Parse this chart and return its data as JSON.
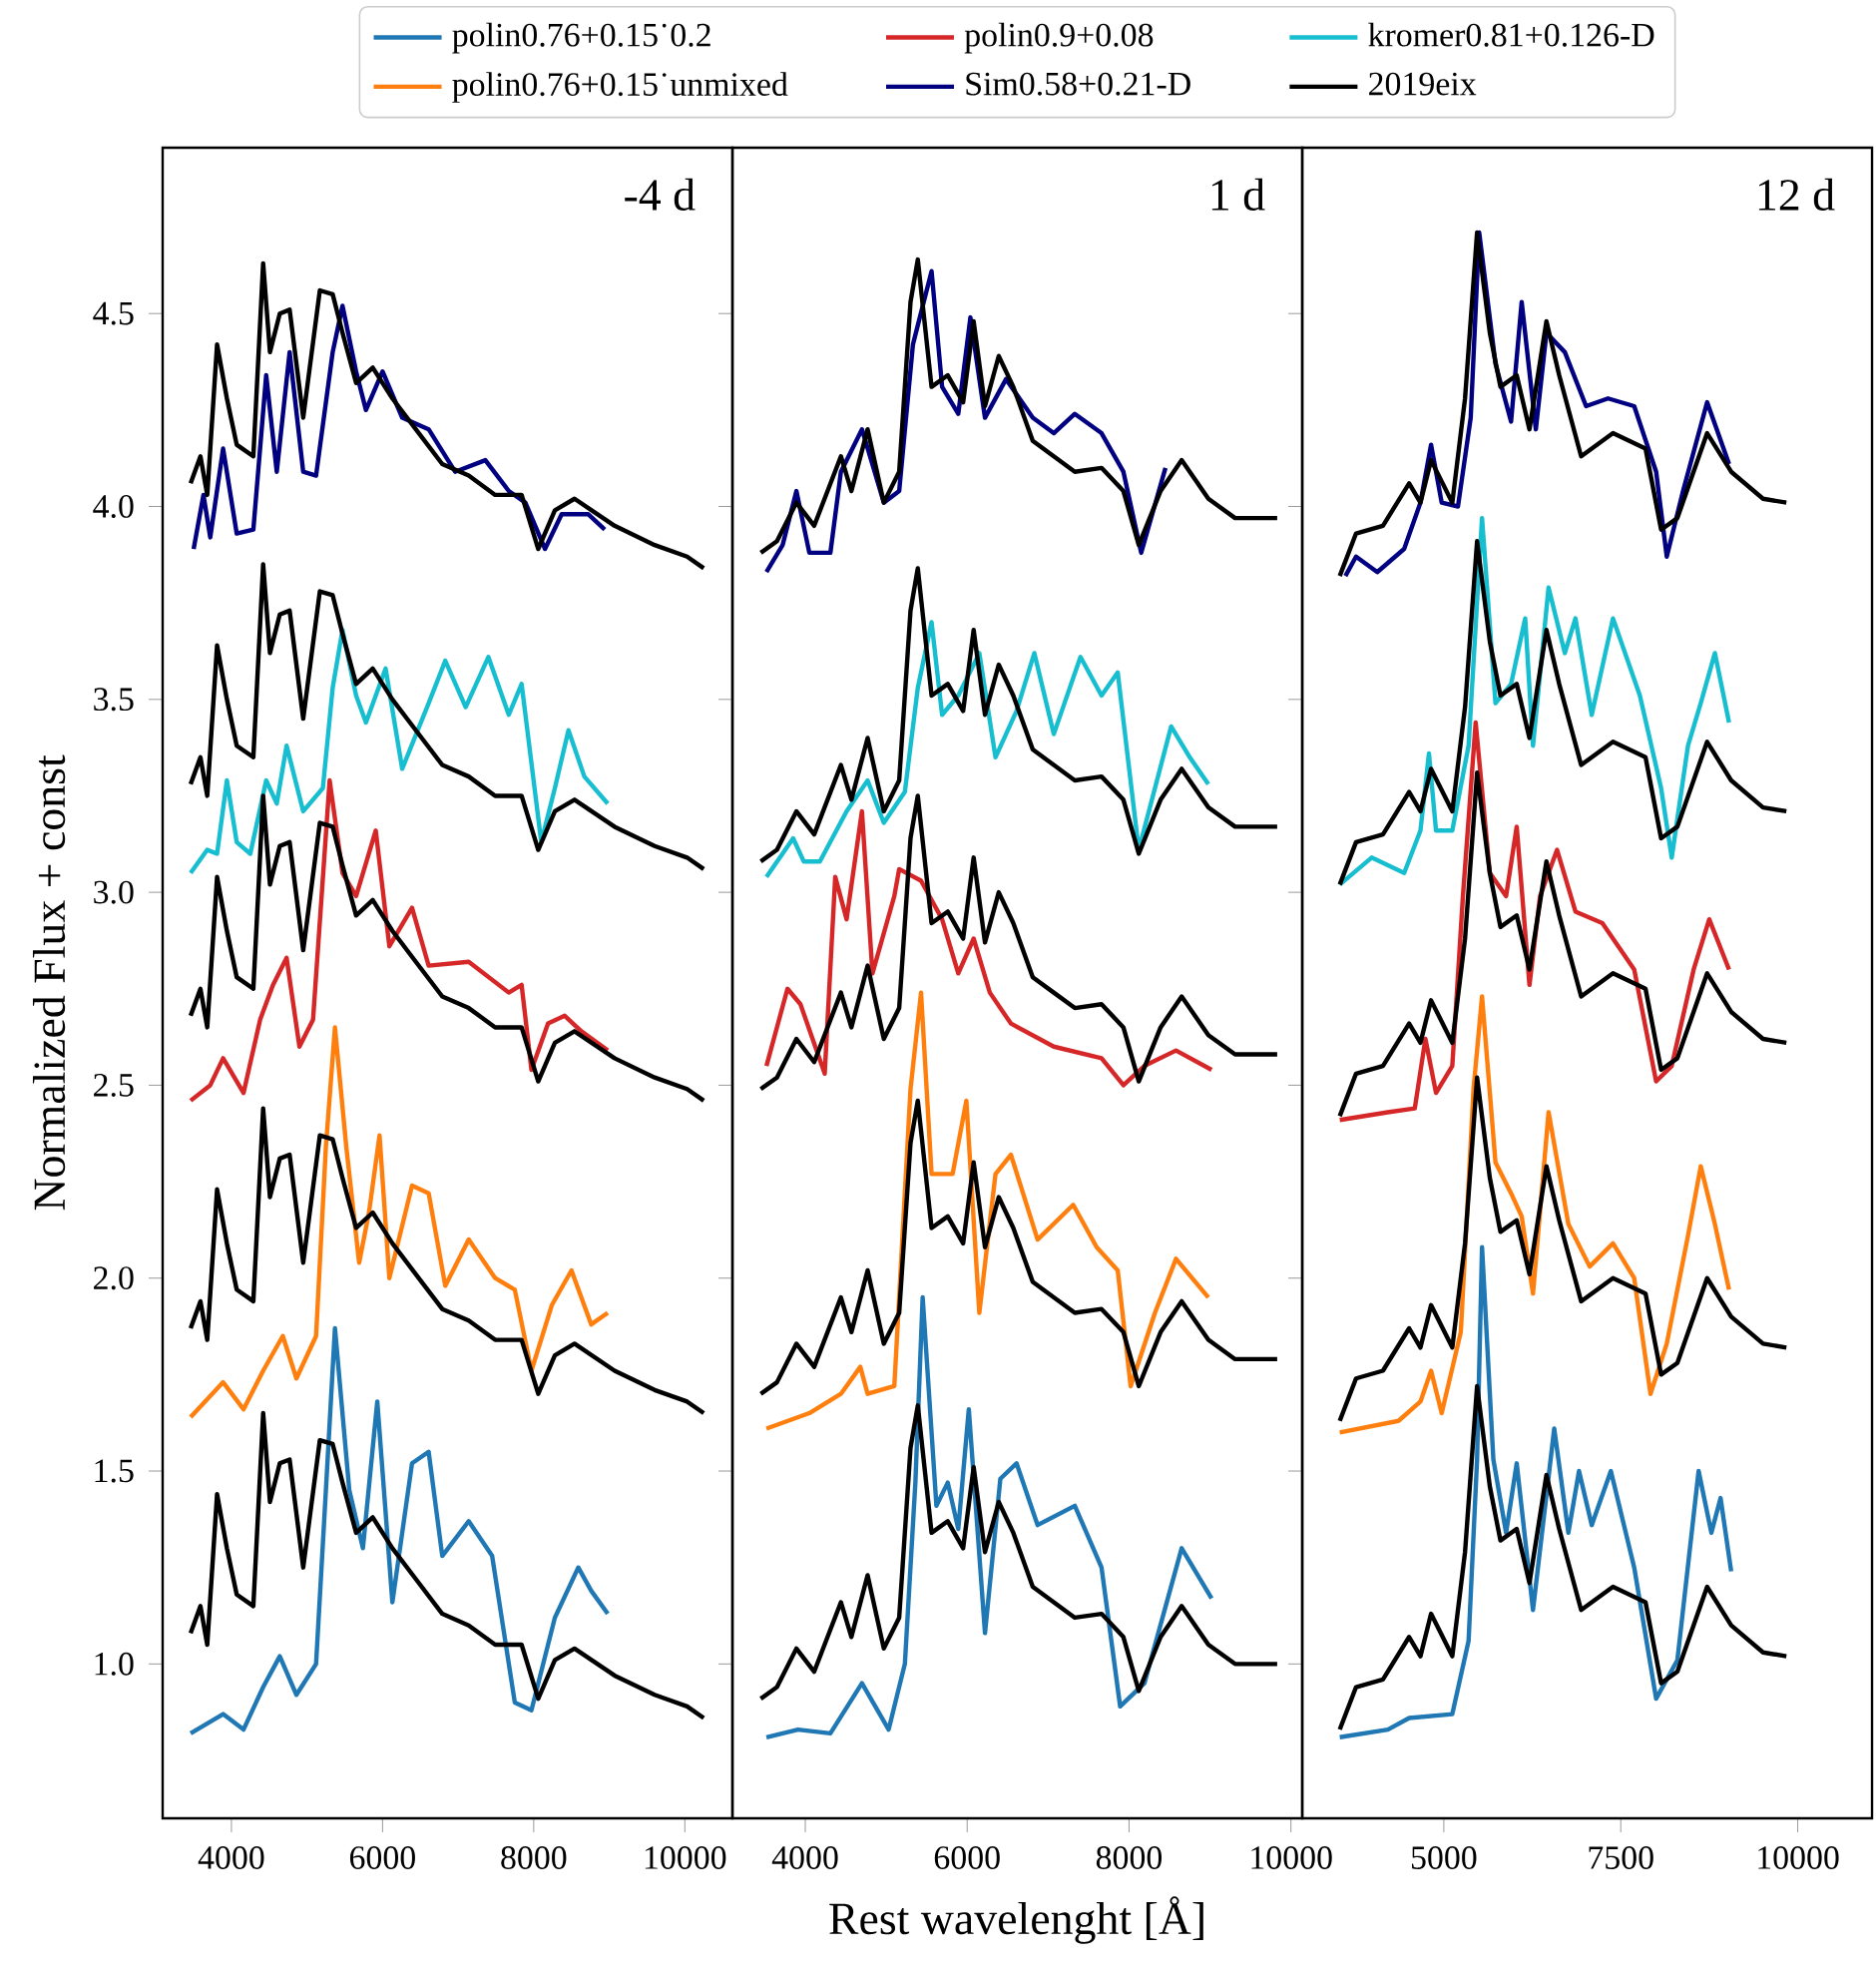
{
  "chart_data": [
    {
      "type": "line",
      "ylabel": "Normalized Flux + const",
      "annotations": [
        "-4 d"
      ],
      "legend": "top",
      "xlim": [
        3090,
        10630
      ],
      "xticks": [
        4000,
        6000,
        8000,
        10000
      ],
      "ylim": [
        0.6,
        4.93
      ],
      "yticks": [
        {
          "value": 1.0,
          "label": "1.0"
        },
        1.5,
        {
          "value": 2.0,
          "label": "2.0"
        },
        2.5,
        {
          "value": 3.0,
          "label": "3.0"
        },
        3.5,
        {
          "value": 4.0,
          "label": "4.0"
        },
        4.5
      ],
      "series": [
        {
          "name": "polin0.76+0.15˙0.2",
          "color": "#1f77b4",
          "x": [
            3460,
            3890,
            4160,
            4420,
            4640,
            4860,
            5120,
            5250,
            5370,
            5560,
            5740,
            5930,
            6130,
            6390,
            6610,
            6790,
            7140,
            7450,
            7750,
            7970,
            8280,
            8590,
            8760,
            8980
          ],
          "values": [
            0.82,
            0.87,
            0.83,
            0.94,
            1.02,
            0.92,
            1.0,
            1.45,
            1.87,
            1.45,
            1.3,
            1.68,
            1.16,
            1.52,
            1.55,
            1.28,
            1.37,
            1.28,
            0.9,
            0.88,
            1.12,
            1.25,
            1.19,
            1.13
          ]
        },
        {
          "name": "polin0.76+0.15˙unmixed",
          "color": "#ff7f0e",
          "x": [
            3460,
            3890,
            4160,
            4420,
            4680,
            4860,
            5120,
            5250,
            5370,
            5520,
            5690,
            5820,
            5960,
            6090,
            6390,
            6610,
            6830,
            7140,
            7490,
            7750,
            7970,
            8240,
            8500,
            8760,
            8980
          ],
          "values": [
            1.64,
            1.73,
            1.66,
            1.76,
            1.85,
            1.74,
            1.85,
            2.34,
            2.65,
            2.34,
            2.04,
            2.17,
            2.37,
            2.0,
            2.24,
            2.22,
            1.98,
            2.1,
            2.0,
            1.97,
            1.76,
            1.93,
            2.02,
            1.88,
            1.91
          ]
        },
        {
          "name": "polin0.9+0.08",
          "color": "#d62728",
          "x": [
            3460,
            3720,
            3890,
            4160,
            4380,
            4550,
            4730,
            4900,
            5080,
            5300,
            5470,
            5650,
            5910,
            6090,
            6390,
            6610,
            7140,
            7670,
            7840,
            7970,
            8190,
            8410,
            8630,
            8980
          ],
          "values": [
            2.46,
            2.5,
            2.57,
            2.48,
            2.67,
            2.76,
            2.83,
            2.6,
            2.67,
            3.29,
            3.05,
            2.99,
            3.16,
            2.86,
            2.96,
            2.81,
            2.82,
            2.74,
            2.76,
            2.54,
            2.66,
            2.68,
            2.64,
            2.59
          ]
        },
        {
          "name": "Sim0.58+0.21-D",
          "color": "#000080",
          "x": [
            3500,
            3630,
            3720,
            3890,
            4070,
            4290,
            4460,
            4600,
            4770,
            4950,
            5120,
            5340,
            5470,
            5650,
            5780,
            6000,
            6260,
            6610,
            6960,
            7360,
            7670,
            7890,
            8150,
            8370,
            8720,
            8940
          ],
          "values": [
            3.89,
            4.03,
            3.92,
            4.15,
            3.93,
            3.94,
            4.34,
            4.09,
            4.4,
            4.09,
            4.08,
            4.4,
            4.52,
            4.35,
            4.25,
            4.35,
            4.23,
            4.2,
            4.09,
            4.12,
            4.04,
            4.01,
            3.89,
            3.98,
            3.98,
            3.94
          ]
        },
        {
          "name": "kromer0.81+0.126-D",
          "color": "#17becf",
          "x": [
            3460,
            3680,
            3810,
            3940,
            4070,
            4250,
            4460,
            4600,
            4730,
            4950,
            5210,
            5340,
            5470,
            5650,
            5780,
            6040,
            6260,
            6610,
            6830,
            7100,
            7400,
            7670,
            7840,
            8100,
            8280,
            8460,
            8670,
            8980
          ],
          "values": [
            3.05,
            3.11,
            3.1,
            3.29,
            3.13,
            3.1,
            3.29,
            3.23,
            3.38,
            3.21,
            3.27,
            3.53,
            3.68,
            3.51,
            3.44,
            3.58,
            3.32,
            3.49,
            3.6,
            3.48,
            3.61,
            3.46,
            3.54,
            3.13,
            3.27,
            3.42,
            3.3,
            3.23
          ]
        },
        {
          "name": "2019eix",
          "color": "#000000",
          "x": [
            3460,
            3590,
            3680,
            3810,
            3940,
            4070,
            4290,
            4420,
            4510,
            4640,
            4770,
            4950,
            5170,
            5340,
            5470,
            5650,
            5870,
            6130,
            6440,
            6790,
            7140,
            7490,
            7840,
            8060,
            8280,
            8540,
            9070,
            9600,
            10030,
            10250
          ],
          "values": [
            4.06,
            4.13,
            4.03,
            4.42,
            4.28,
            4.16,
            4.13,
            4.63,
            4.4,
            4.5,
            4.51,
            4.23,
            4.56,
            4.55,
            4.45,
            4.32,
            4.36,
            4.28,
            4.2,
            4.11,
            4.08,
            4.03,
            4.03,
            3.89,
            3.99,
            4.02,
            3.95,
            3.9,
            3.87,
            3.84
          ]
        },
        {
          "color": "#000000",
          "x": [
            3460,
            3590,
            3680,
            3810,
            3940,
            4070,
            4290,
            4420,
            4510,
            4640,
            4770,
            4950,
            5170,
            5340,
            5470,
            5650,
            5870,
            6130,
            6440,
            6790,
            7140,
            7490,
            7840,
            8060,
            8280,
            8540,
            9070,
            9600,
            10030,
            10250
          ],
          "values": [
            3.28,
            3.35,
            3.25,
            3.64,
            3.5,
            3.38,
            3.35,
            3.85,
            3.62,
            3.72,
            3.73,
            3.45,
            3.78,
            3.77,
            3.67,
            3.54,
            3.58,
            3.5,
            3.42,
            3.33,
            3.3,
            3.25,
            3.25,
            3.11,
            3.21,
            3.24,
            3.17,
            3.12,
            3.09,
            3.06
          ]
        },
        {
          "color": "#000000",
          "x": [
            3460,
            3590,
            3680,
            3810,
            3940,
            4070,
            4290,
            4420,
            4510,
            4640,
            4770,
            4950,
            5170,
            5340,
            5470,
            5650,
            5870,
            6130,
            6440,
            6790,
            7140,
            7490,
            7840,
            8060,
            8280,
            8540,
            9070,
            9600,
            10030,
            10250
          ],
          "values": [
            2.68,
            2.75,
            2.65,
            3.04,
            2.9,
            2.78,
            2.75,
            3.25,
            3.02,
            3.12,
            3.13,
            2.85,
            3.18,
            3.17,
            3.07,
            2.94,
            2.98,
            2.9,
            2.82,
            2.73,
            2.7,
            2.65,
            2.65,
            2.51,
            2.61,
            2.64,
            2.57,
            2.52,
            2.49,
            2.46
          ]
        },
        {
          "color": "#000000",
          "x": [
            3460,
            3590,
            3680,
            3810,
            3940,
            4070,
            4290,
            4420,
            4510,
            4640,
            4770,
            4950,
            5170,
            5340,
            5470,
            5650,
            5870,
            6130,
            6440,
            6790,
            7140,
            7490,
            7840,
            8060,
            8280,
            8540,
            9070,
            9600,
            10030,
            10250
          ],
          "values": [
            1.87,
            1.94,
            1.84,
            2.23,
            2.09,
            1.97,
            1.94,
            2.44,
            2.21,
            2.31,
            2.32,
            2.04,
            2.37,
            2.36,
            2.26,
            2.13,
            2.17,
            2.09,
            2.01,
            1.92,
            1.89,
            1.84,
            1.84,
            1.7,
            1.8,
            1.83,
            1.76,
            1.71,
            1.68,
            1.65
          ]
        },
        {
          "color": "#000000",
          "x": [
            3460,
            3590,
            3680,
            3810,
            3940,
            4070,
            4290,
            4420,
            4510,
            4640,
            4770,
            4950,
            5170,
            5340,
            5470,
            5650,
            5870,
            6130,
            6440,
            6790,
            7140,
            7490,
            7840,
            8060,
            8280,
            8540,
            9070,
            9600,
            10030,
            10250
          ],
          "values": [
            1.08,
            1.15,
            1.05,
            1.44,
            1.3,
            1.18,
            1.15,
            1.65,
            1.42,
            1.52,
            1.53,
            1.25,
            1.58,
            1.57,
            1.47,
            1.34,
            1.38,
            1.3,
            1.22,
            1.13,
            1.1,
            1.05,
            1.05,
            0.91,
            1.01,
            1.04,
            0.97,
            0.92,
            0.89,
            0.86
          ]
        }
      ]
    },
    {
      "type": "line",
      "xlabel": "Rest wavelenght [Å]",
      "annotations": [
        "1 d"
      ],
      "tick_labels": "x",
      "xlim": [
        3100,
        10140
      ],
      "xticks": [
        4000,
        6000,
        8000,
        10000
      ],
      "ylim": [
        0.6,
        4.93
      ],
      "yticks": [
        1.0,
        1.5,
        2.0,
        2.5,
        3.0,
        3.5,
        4.0,
        4.5
      ],
      "series": [
        {
          "color": "#1f77b4",
          "x": [
            3520,
            3910,
            4310,
            4700,
            5030,
            5230,
            5360,
            5450,
            5620,
            5760,
            5890,
            6020,
            6220,
            6410,
            6610,
            6870,
            7330,
            7660,
            7890,
            8190,
            8650,
            9020
          ],
          "values": [
            0.81,
            0.83,
            0.82,
            0.95,
            0.83,
            1.0,
            1.47,
            1.95,
            1.41,
            1.47,
            1.35,
            1.66,
            1.08,
            1.48,
            1.52,
            1.36,
            1.41,
            1.25,
            0.89,
            0.95,
            1.3,
            1.17
          ]
        },
        {
          "color": "#ff7f0e",
          "x": [
            3520,
            4050,
            4440,
            4680,
            4770,
            5100,
            5300,
            5430,
            5560,
            5820,
            5990,
            6150,
            6350,
            6540,
            6870,
            7310,
            7600,
            7860,
            8020,
            8320,
            8580,
            8980
          ],
          "values": [
            1.61,
            1.65,
            1.7,
            1.77,
            1.7,
            1.72,
            2.49,
            2.74,
            2.27,
            2.27,
            2.46,
            1.91,
            2.27,
            2.32,
            2.1,
            2.19,
            2.08,
            2.02,
            1.72,
            1.91,
            2.05,
            1.95
          ]
        },
        {
          "color": "#d62728",
          "x": [
            3520,
            3780,
            3940,
            4240,
            4370,
            4510,
            4700,
            4830,
            5100,
            5160,
            5430,
            5690,
            5890,
            6080,
            6280,
            6540,
            7070,
            7660,
            7930,
            8190,
            8580,
            9020
          ],
          "values": [
            2.55,
            2.75,
            2.71,
            2.53,
            3.04,
            2.93,
            3.21,
            2.79,
            2.99,
            3.06,
            3.03,
            2.93,
            2.79,
            2.88,
            2.74,
            2.66,
            2.6,
            2.57,
            2.5,
            2.55,
            2.59,
            2.54
          ]
        },
        {
          "color": "#000080",
          "x": [
            3520,
            3720,
            3890,
            4050,
            4310,
            4440,
            4700,
            4970,
            5160,
            5330,
            5560,
            5690,
            5890,
            6040,
            6220,
            6480,
            6810,
            7070,
            7330,
            7660,
            7930,
            8150,
            8450
          ],
          "values": [
            3.83,
            3.9,
            4.04,
            3.88,
            3.88,
            4.09,
            4.2,
            4.01,
            4.04,
            4.42,
            4.61,
            4.31,
            4.24,
            4.49,
            4.23,
            4.33,
            4.23,
            4.19,
            4.24,
            4.19,
            4.09,
            3.88,
            4.1
          ]
        },
        {
          "color": "#17becf",
          "x": [
            3520,
            3850,
            3980,
            4180,
            4510,
            4770,
            4970,
            5230,
            5390,
            5560,
            5690,
            5890,
            6150,
            6350,
            6610,
            6830,
            7070,
            7400,
            7660,
            7860,
            8120,
            8520,
            8750,
            8980
          ],
          "values": [
            3.04,
            3.14,
            3.08,
            3.08,
            3.21,
            3.29,
            3.18,
            3.26,
            3.53,
            3.7,
            3.46,
            3.51,
            3.62,
            3.35,
            3.47,
            3.62,
            3.41,
            3.61,
            3.51,
            3.57,
            3.11,
            3.43,
            3.35,
            3.28
          ]
        },
        {
          "color": "#000000",
          "x": [
            3450,
            3650,
            3890,
            4110,
            4440,
            4570,
            4770,
            4970,
            5160,
            5300,
            5390,
            5560,
            5760,
            5950,
            6080,
            6220,
            6390,
            6570,
            6810,
            7070,
            7330,
            7660,
            7930,
            8120,
            8390,
            8650,
            8980,
            9310,
            9830
          ],
          "values": [
            3.88,
            3.91,
            4.01,
            3.95,
            4.13,
            4.04,
            4.2,
            4.01,
            4.09,
            4.53,
            4.64,
            4.31,
            4.34,
            4.27,
            4.48,
            4.26,
            4.39,
            4.31,
            4.17,
            4.13,
            4.09,
            4.1,
            4.04,
            3.9,
            4.04,
            4.12,
            4.02,
            3.97,
            3.97
          ]
        },
        {
          "color": "#000000",
          "x": [
            3450,
            3650,
            3890,
            4110,
            4440,
            4570,
            4770,
            4970,
            5160,
            5300,
            5390,
            5560,
            5760,
            5950,
            6080,
            6220,
            6390,
            6570,
            6810,
            7070,
            7330,
            7660,
            7930,
            8120,
            8390,
            8650,
            8980,
            9310,
            9830
          ],
          "values": [
            3.08,
            3.11,
            3.21,
            3.15,
            3.33,
            3.24,
            3.4,
            3.21,
            3.29,
            3.73,
            3.84,
            3.51,
            3.54,
            3.47,
            3.68,
            3.46,
            3.59,
            3.51,
            3.37,
            3.33,
            3.29,
            3.3,
            3.24,
            3.1,
            3.24,
            3.32,
            3.22,
            3.17,
            3.17
          ]
        },
        {
          "color": "#000000",
          "x": [
            3450,
            3650,
            3890,
            4110,
            4440,
            4570,
            4770,
            4970,
            5160,
            5300,
            5390,
            5560,
            5760,
            5950,
            6080,
            6220,
            6390,
            6570,
            6810,
            7070,
            7330,
            7660,
            7930,
            8120,
            8390,
            8650,
            8980,
            9310,
            9830
          ],
          "values": [
            2.49,
            2.52,
            2.62,
            2.56,
            2.74,
            2.65,
            2.81,
            2.62,
            2.7,
            3.14,
            3.25,
            2.92,
            2.95,
            2.88,
            3.09,
            2.87,
            3.0,
            2.92,
            2.78,
            2.74,
            2.7,
            2.71,
            2.65,
            2.51,
            2.65,
            2.73,
            2.63,
            2.58,
            2.58
          ]
        },
        {
          "color": "#000000",
          "x": [
            3450,
            3650,
            3890,
            4110,
            4440,
            4570,
            4770,
            4970,
            5160,
            5300,
            5390,
            5560,
            5760,
            5950,
            6080,
            6220,
            6390,
            6570,
            6810,
            7070,
            7330,
            7660,
            7930,
            8120,
            8390,
            8650,
            8980,
            9310,
            9830
          ],
          "values": [
            1.7,
            1.73,
            1.83,
            1.77,
            1.95,
            1.86,
            2.02,
            1.83,
            1.91,
            2.35,
            2.46,
            2.13,
            2.16,
            2.09,
            2.3,
            2.08,
            2.21,
            2.13,
            1.99,
            1.95,
            1.91,
            1.92,
            1.86,
            1.72,
            1.86,
            1.94,
            1.84,
            1.79,
            1.79
          ]
        },
        {
          "color": "#000000",
          "x": [
            3450,
            3650,
            3890,
            4110,
            4440,
            4570,
            4770,
            4970,
            5160,
            5300,
            5390,
            5560,
            5760,
            5950,
            6080,
            6220,
            6390,
            6570,
            6810,
            7070,
            7330,
            7660,
            7930,
            8120,
            8390,
            8650,
            8980,
            9310,
            9830
          ],
          "values": [
            0.91,
            0.94,
            1.04,
            0.98,
            1.16,
            1.07,
            1.23,
            1.04,
            1.12,
            1.56,
            1.67,
            1.34,
            1.37,
            1.3,
            1.51,
            1.29,
            1.42,
            1.34,
            1.2,
            1.16,
            1.12,
            1.13,
            1.07,
            0.93,
            1.07,
            1.15,
            1.05,
            1.0,
            1.0
          ]
        }
      ]
    },
    {
      "type": "line",
      "annotations": [
        "12 d"
      ],
      "tick_labels": "x",
      "xlim": [
        3000,
        11050
      ],
      "xticks": [
        5000,
        7500,
        10000
      ],
      "ylim": [
        0.6,
        4.93
      ],
      "yticks": [
        1.0,
        1.5,
        2.0,
        2.5,
        3.0,
        3.5,
        4.0,
        4.5
      ],
      "series": [
        {
          "color": "#1f77b4",
          "x": [
            3530,
            4210,
            4510,
            5120,
            5350,
            5470,
            5540,
            5700,
            5880,
            6030,
            6260,
            6560,
            6760,
            6910,
            7090,
            7360,
            7690,
            8000,
            8300,
            8600,
            8780,
            8910,
            9060
          ],
          "values": [
            0.81,
            0.83,
            0.86,
            0.87,
            1.06,
            1.53,
            2.08,
            1.53,
            1.34,
            1.52,
            1.14,
            1.61,
            1.34,
            1.5,
            1.36,
            1.5,
            1.25,
            0.91,
            1.01,
            1.5,
            1.34,
            1.43,
            1.24
          ]
        },
        {
          "color": "#ff7f0e",
          "x": [
            3530,
            4360,
            4670,
            4820,
            4970,
            5240,
            5420,
            5540,
            5730,
            5950,
            6100,
            6260,
            6480,
            6760,
            7060,
            7390,
            7690,
            7920,
            8150,
            8450,
            8630,
            8830,
            9030
          ],
          "values": [
            1.6,
            1.63,
            1.68,
            1.76,
            1.65,
            1.86,
            2.49,
            2.73,
            2.3,
            2.22,
            2.16,
            1.96,
            2.43,
            2.14,
            2.03,
            2.09,
            2.0,
            1.7,
            1.83,
            2.11,
            2.29,
            2.14,
            1.97
          ]
        },
        {
          "color": "#d62728",
          "x": [
            3530,
            4210,
            4590,
            4740,
            4890,
            5120,
            5270,
            5450,
            5650,
            5880,
            6030,
            6210,
            6360,
            6600,
            6860,
            7240,
            7690,
            8000,
            8220,
            8530,
            8750,
            9030
          ],
          "values": [
            2.41,
            2.43,
            2.44,
            2.62,
            2.48,
            2.55,
            2.99,
            3.44,
            3.05,
            2.99,
            3.17,
            2.76,
            2.99,
            3.11,
            2.95,
            2.92,
            2.8,
            2.51,
            2.55,
            2.8,
            2.93,
            2.8
          ]
        },
        {
          "color": "#000080",
          "x": [
            3610,
            3760,
            4060,
            4440,
            4670,
            4820,
            4970,
            5200,
            5380,
            5500,
            5730,
            5950,
            6100,
            6300,
            6450,
            6710,
            7010,
            7320,
            7690,
            8000,
            8150,
            8380,
            8720,
            9030
          ],
          "values": [
            3.82,
            3.87,
            3.83,
            3.89,
            4.01,
            4.16,
            4.01,
            4.0,
            4.23,
            4.71,
            4.37,
            4.22,
            4.53,
            4.2,
            4.45,
            4.4,
            4.26,
            4.28,
            4.26,
            4.09,
            3.87,
            4.04,
            4.27,
            4.11
          ]
        },
        {
          "color": "#17becf",
          "x": [
            3530,
            3980,
            4440,
            4670,
            4790,
            4890,
            5120,
            5350,
            5540,
            5730,
            5950,
            6150,
            6260,
            6480,
            6710,
            6860,
            7090,
            7390,
            7770,
            8070,
            8220,
            8450,
            8630,
            8830,
            9030
          ],
          "values": [
            3.02,
            3.09,
            3.05,
            3.16,
            3.36,
            3.16,
            3.16,
            3.38,
            3.97,
            3.49,
            3.54,
            3.71,
            3.38,
            3.79,
            3.62,
            3.71,
            3.46,
            3.71,
            3.51,
            3.27,
            3.09,
            3.38,
            3.49,
            3.62,
            3.44
          ]
        },
        {
          "color": "#000000",
          "x": [
            3530,
            3760,
            4140,
            4510,
            4670,
            4820,
            5120,
            5300,
            5470,
            5650,
            5800,
            6030,
            6210,
            6450,
            6630,
            6940,
            7390,
            7850,
            8070,
            8300,
            8720,
            9060,
            9510,
            9840
          ],
          "values": [
            3.82,
            3.93,
            3.95,
            4.06,
            4.01,
            4.12,
            4.01,
            4.28,
            4.71,
            4.45,
            4.31,
            4.34,
            4.2,
            4.48,
            4.34,
            4.13,
            4.19,
            4.15,
            3.94,
            3.97,
            4.19,
            4.09,
            4.02,
            4.01
          ]
        },
        {
          "color": "#000000",
          "x": [
            3530,
            3760,
            4140,
            4510,
            4670,
            4820,
            5120,
            5300,
            5470,
            5650,
            5800,
            6030,
            6210,
            6450,
            6630,
            6940,
            7390,
            7850,
            8070,
            8300,
            8720,
            9060,
            9510,
            9840
          ],
          "values": [
            3.02,
            3.13,
            3.15,
            3.26,
            3.21,
            3.32,
            3.21,
            3.48,
            3.91,
            3.65,
            3.51,
            3.54,
            3.4,
            3.68,
            3.54,
            3.33,
            3.39,
            3.35,
            3.14,
            3.17,
            3.39,
            3.29,
            3.22,
            3.21
          ]
        },
        {
          "color": "#000000",
          "x": [
            3530,
            3760,
            4140,
            4510,
            4670,
            4820,
            5120,
            5300,
            5470,
            5650,
            5800,
            6030,
            6210,
            6450,
            6630,
            6940,
            7390,
            7850,
            8070,
            8300,
            8720,
            9060,
            9510,
            9840
          ],
          "values": [
            2.42,
            2.53,
            2.55,
            2.66,
            2.61,
            2.72,
            2.61,
            2.88,
            3.31,
            3.05,
            2.91,
            2.94,
            2.8,
            3.08,
            2.94,
            2.73,
            2.79,
            2.75,
            2.54,
            2.57,
            2.79,
            2.69,
            2.62,
            2.61
          ]
        },
        {
          "color": "#000000",
          "x": [
            3530,
            3760,
            4140,
            4510,
            4670,
            4820,
            5120,
            5300,
            5470,
            5650,
            5800,
            6030,
            6210,
            6450,
            6630,
            6940,
            7390,
            7850,
            8070,
            8300,
            8720,
            9060,
            9510,
            9840
          ],
          "values": [
            1.63,
            1.74,
            1.76,
            1.87,
            1.82,
            1.93,
            1.82,
            2.09,
            2.52,
            2.26,
            2.12,
            2.15,
            2.01,
            2.29,
            2.15,
            1.94,
            2.0,
            1.96,
            1.75,
            1.78,
            2.0,
            1.9,
            1.83,
            1.82
          ]
        },
        {
          "color": "#000000",
          "x": [
            3530,
            3760,
            4140,
            4510,
            4670,
            4820,
            5120,
            5300,
            5470,
            5650,
            5800,
            6030,
            6210,
            6450,
            6630,
            6940,
            7390,
            7850,
            8070,
            8300,
            8720,
            9060,
            9510,
            9840
          ],
          "values": [
            0.83,
            0.94,
            0.96,
            1.07,
            1.02,
            1.13,
            1.02,
            1.29,
            1.72,
            1.46,
            1.32,
            1.35,
            1.21,
            1.49,
            1.35,
            1.14,
            1.2,
            1.16,
            0.95,
            0.98,
            1.2,
            1.1,
            1.03,
            1.02
          ]
        }
      ]
    }
  ]
}
